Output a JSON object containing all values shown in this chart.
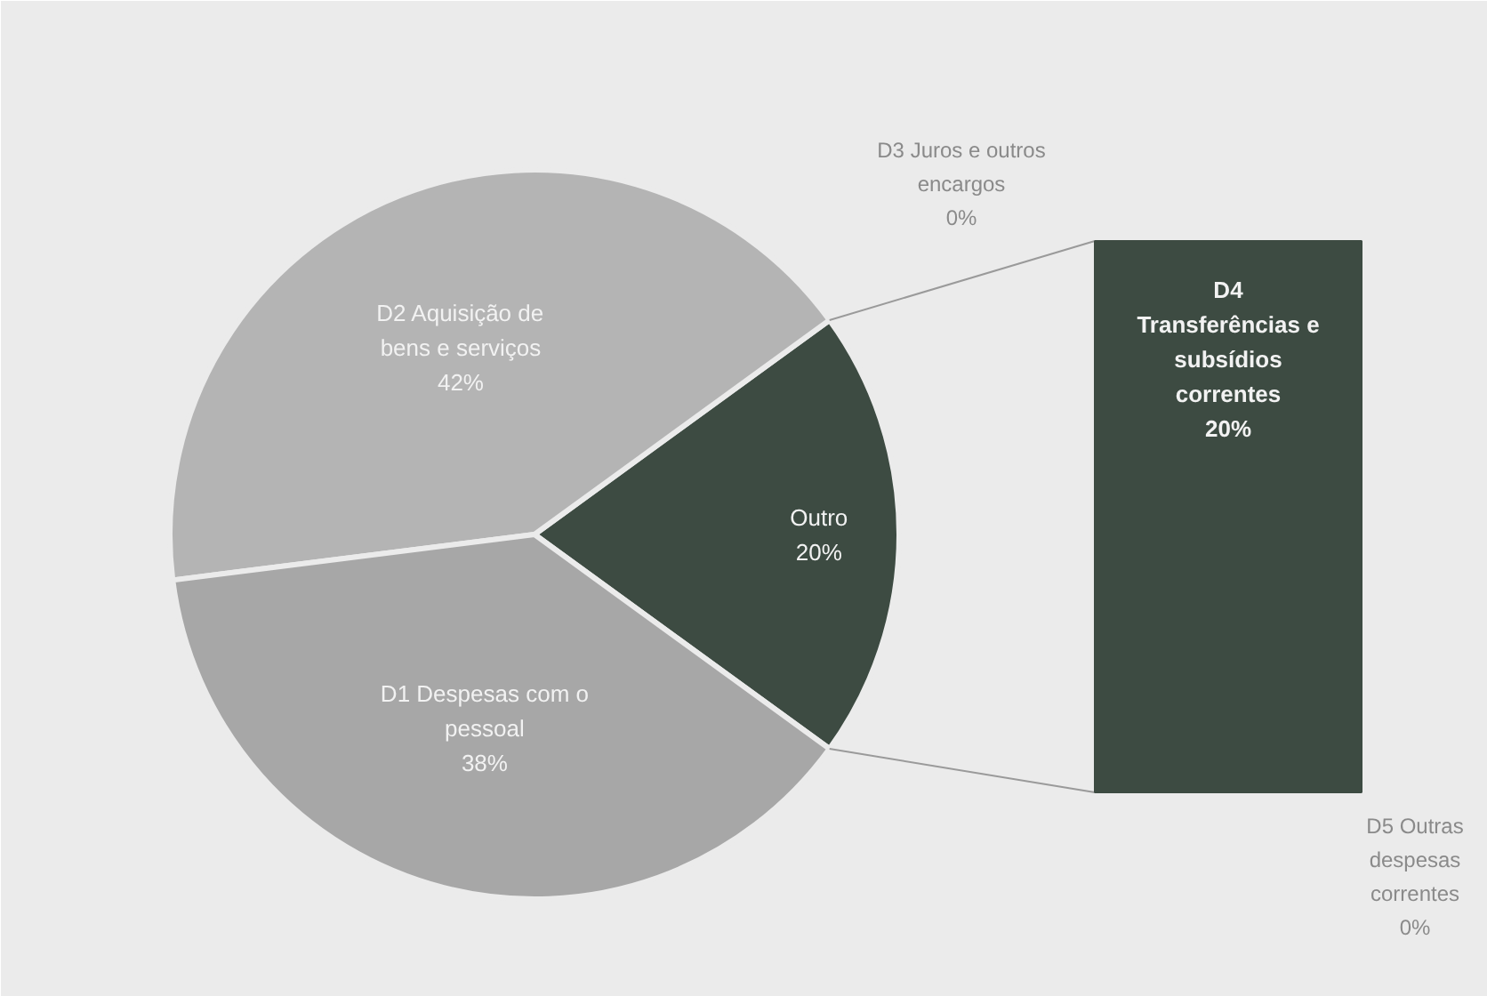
{
  "chart_data": [
    {
      "type": "pie",
      "categories": [
        "Outro",
        "D2 Aquisição de bens e serviços",
        "D1 Despesas com o pessoal"
      ],
      "values": [
        20,
        42,
        38
      ],
      "value_labels": [
        "20%",
        "42%",
        "38%"
      ],
      "colors": [
        "#3d4b42",
        "#b4b4b4",
        "#a7a7a7"
      ]
    },
    {
      "type": "other",
      "categories": [
        "D5 Outras despesas correntes",
        "D4 Transferências e subsídios correntes",
        "D3 Juros e outros encargos"
      ],
      "values": [
        0,
        20,
        0
      ],
      "value_labels": [
        "0%",
        "20%",
        "0%"
      ],
      "color": "#3d4b42"
    }
  ]
}
